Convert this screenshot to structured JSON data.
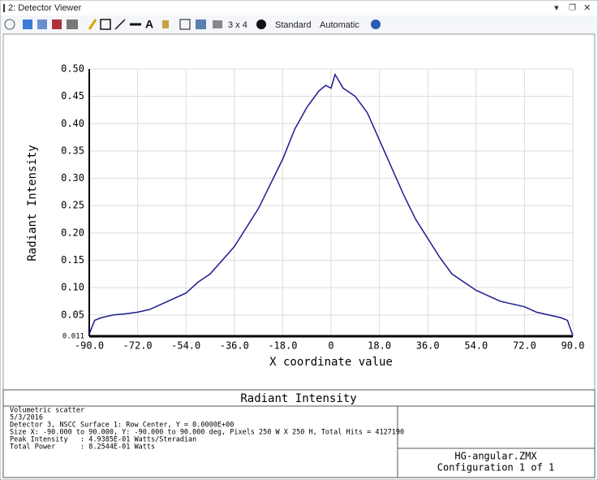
{
  "window": {
    "title": "2: Detector Viewer"
  },
  "toolbar": {
    "layout": "3 x 4",
    "display": "Standard",
    "scale": "Automatic"
  },
  "chart_data": {
    "type": "line",
    "ylabel": "Radiant Intensity",
    "xlabel": "X coordinate value",
    "x": [
      -90,
      -88,
      -85.5,
      -81,
      -76.5,
      -72,
      -67.5,
      -63,
      -58.5,
      -54,
      -49.5,
      -45,
      -40.5,
      -36,
      -31.5,
      -27,
      -22.5,
      -18,
      -13.5,
      -9,
      -4.5,
      -2,
      0,
      1.5,
      4.5,
      9,
      13.5,
      18,
      22.5,
      27,
      31.5,
      36,
      40.5,
      45,
      49.5,
      54,
      58.5,
      63,
      67.5,
      72,
      76.5,
      81,
      85.5,
      88,
      90
    ],
    "series": [
      {
        "name": "Radiant Intensity",
        "color": "#1c1c8f",
        "values": [
          0.015,
          0.04,
          0.045,
          0.05,
          0.052,
          0.055,
          0.06,
          0.07,
          0.08,
          0.09,
          0.11,
          0.125,
          0.15,
          0.175,
          0.21,
          0.245,
          0.29,
          0.335,
          0.39,
          0.43,
          0.46,
          0.47,
          0.465,
          0.49,
          0.465,
          0.45,
          0.42,
          0.37,
          0.32,
          0.27,
          0.225,
          0.19,
          0.155,
          0.125,
          0.11,
          0.095,
          0.085,
          0.075,
          0.07,
          0.065,
          0.055,
          0.05,
          0.045,
          0.04,
          0.012
        ]
      }
    ],
    "xlim": [
      -90,
      90
    ],
    "xticks": [
      {
        "value": -90,
        "label": "-90.0"
      },
      {
        "value": -72,
        "label": "-72.0"
      },
      {
        "value": -54,
        "label": "-54.0"
      },
      {
        "value": -36,
        "label": "-36.0"
      },
      {
        "value": -18,
        "label": "-18.0"
      },
      {
        "value": 0,
        "label": "0"
      },
      {
        "value": 18,
        "label": "18.0"
      },
      {
        "value": 36,
        "label": "36.0"
      },
      {
        "value": 54,
        "label": "54.0"
      },
      {
        "value": 72,
        "label": "72.0"
      },
      {
        "value": 90,
        "label": "90.0"
      }
    ],
    "ylim": [
      0.011,
      0.5
    ],
    "yticks": [
      0.011,
      0.05,
      {
        "value": 0.1,
        "label": "0.10"
      },
      0.15,
      {
        "value": 0.2,
        "label": "0.20"
      },
      0.25,
      {
        "value": 0.3,
        "label": "0.30"
      },
      0.35,
      {
        "value": 0.4,
        "label": "0.40"
      },
      0.45,
      {
        "value": 0.5,
        "label": "0.50"
      }
    ],
    "grid": true
  },
  "footer": {
    "title": "Radiant Intensity",
    "info": [
      "Volumetric scatter",
      "5/3/2016",
      "Detector 3, NSCC Surface 1: Row Center, Y = 0.0000E+00",
      "Size X: -90.000 to 90.000, Y: -90.000 to 90.000 deg, Pixels 250 W X 250 H, Total Hits = 4127190",
      "Peak Intensity   : 4.9385E-01 Watts/Steradian",
      "Total Power      : 8.2544E-01 Watts"
    ],
    "file": "HG-angular.ZMX",
    "config": "Configuration 1 of 1"
  }
}
